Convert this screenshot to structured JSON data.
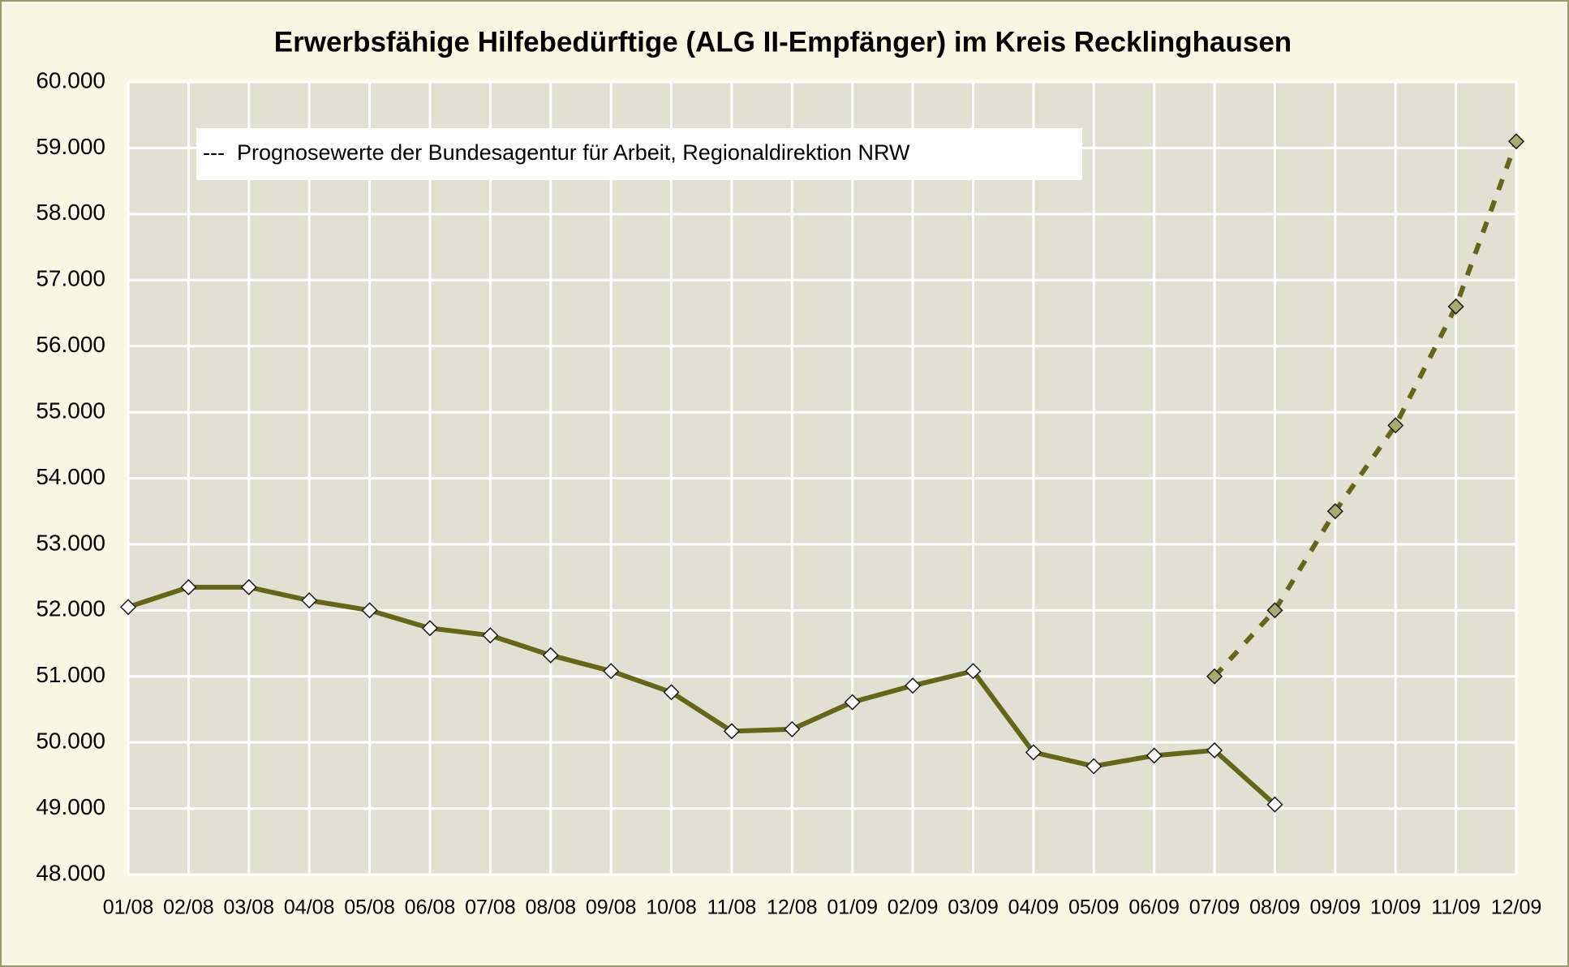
{
  "chart_data": {
    "type": "line",
    "title": "Erwerbsfähige Hilfebedürftige (ALG II-Empfänger) im Kreis Recklinghausen",
    "annotation": "---  Prognosewerte der Bundesagentur für Arbeit, Regionaldirektion NRW",
    "categories": [
      "01/08",
      "02/08",
      "03/08",
      "04/08",
      "05/08",
      "06/08",
      "07/08",
      "08/08",
      "09/08",
      "10/08",
      "11/08",
      "12/08",
      "01/09",
      "02/09",
      "03/09",
      "04/09",
      "05/09",
      "06/09",
      "07/09",
      "08/09",
      "09/09",
      "10/09",
      "11/09",
      "12/09"
    ],
    "series": [
      {
        "color": "#66661a",
        "linestyle": "solid",
        "marker_fill": "#ffffff",
        "values": [
          52050,
          52350,
          52350,
          52150,
          52000,
          51730,
          51620,
          51320,
          51080,
          50760,
          50170,
          50200,
          50610,
          50860,
          51080,
          49850,
          49640,
          49800,
          49880,
          49060,
          null,
          null,
          null,
          null
        ]
      },
      {
        "color": "#66661a",
        "linestyle": "dashed",
        "marker_fill": "#a9ab72",
        "values": [
          null,
          null,
          null,
          null,
          null,
          null,
          null,
          null,
          null,
          null,
          null,
          null,
          null,
          null,
          null,
          null,
          null,
          null,
          51000,
          52000,
          53500,
          54800,
          56600,
          59100
        ]
      }
    ],
    "ylim": [
      48000,
      60000
    ],
    "yticks": [
      {
        "value": 48000,
        "label": "48.000"
      },
      {
        "value": 49000,
        "label": "49.000"
      },
      {
        "value": 50000,
        "label": "50.000"
      },
      {
        "value": 51000,
        "label": "51.000"
      },
      {
        "value": 52000,
        "label": "52.000"
      },
      {
        "value": 53000,
        "label": "53.000"
      },
      {
        "value": 54000,
        "label": "54.000"
      },
      {
        "value": 55000,
        "label": "55.000"
      },
      {
        "value": 56000,
        "label": "56.000"
      },
      {
        "value": 57000,
        "label": "57.000"
      },
      {
        "value": 58000,
        "label": "58.000"
      },
      {
        "value": 59000,
        "label": "59.000"
      },
      {
        "value": 60000,
        "label": "60.000"
      }
    ],
    "grid": true
  }
}
